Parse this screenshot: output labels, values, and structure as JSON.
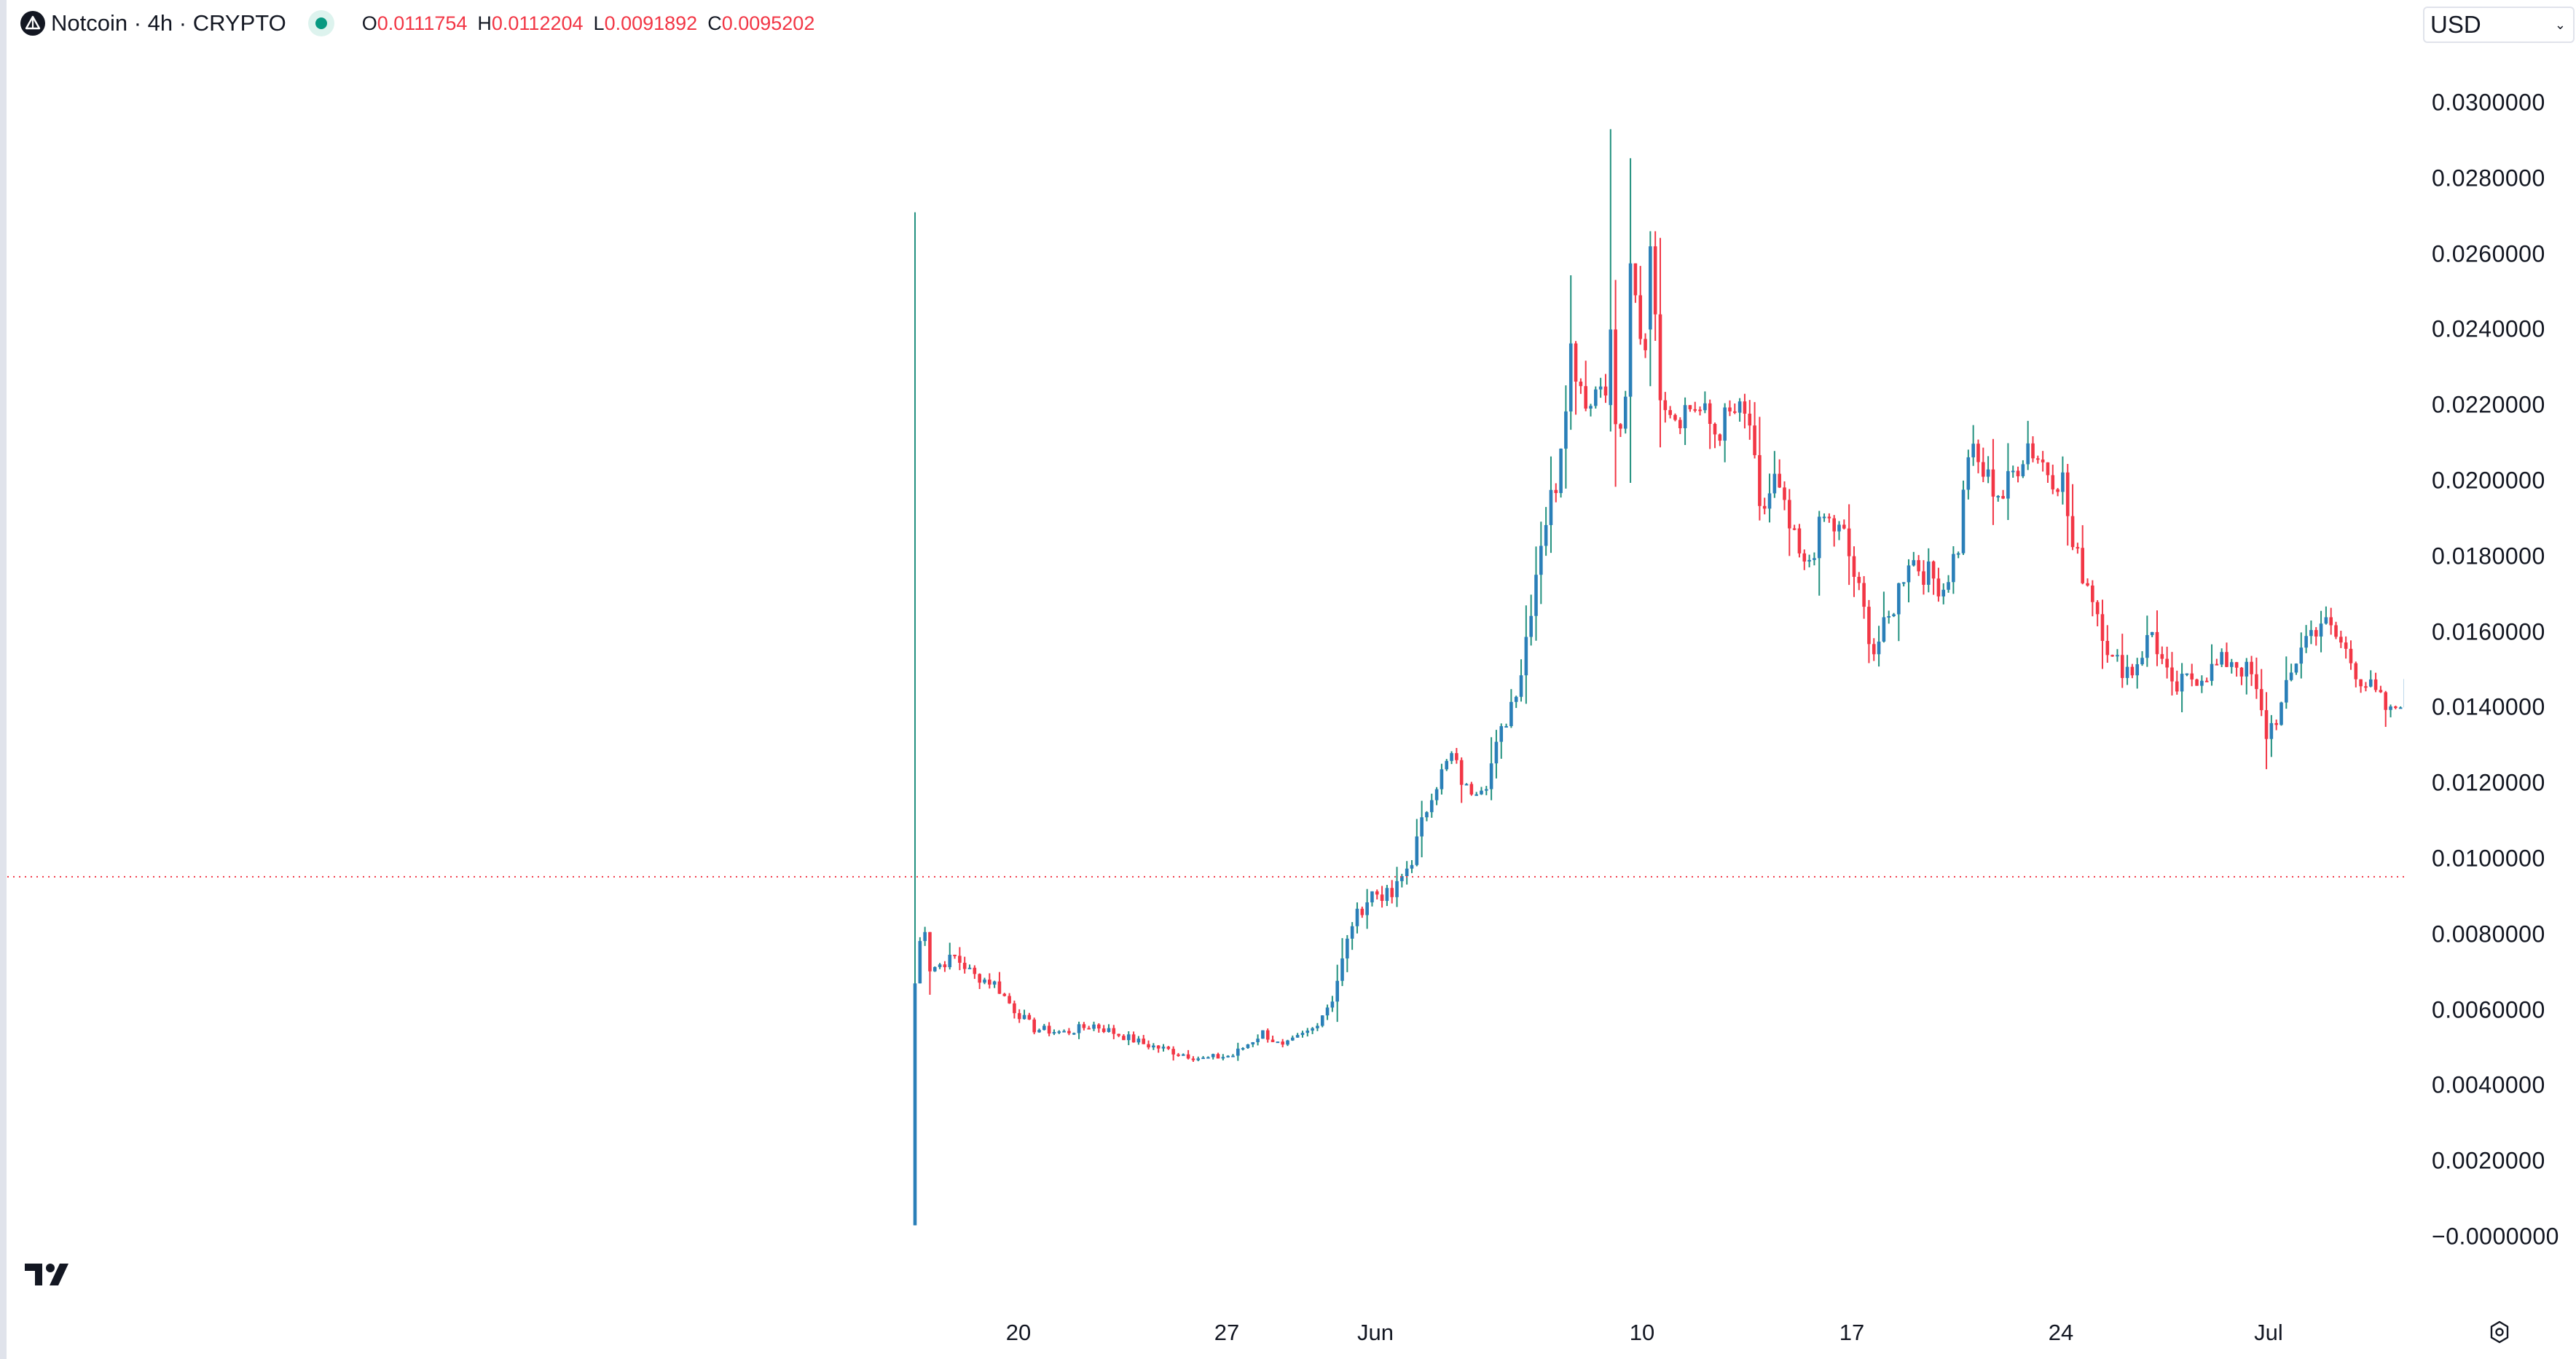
{
  "legend": {
    "title": "Notcoin · 4h · CRYPTO",
    "ohlc": [
      {
        "key": "O",
        "value": "0.0111754"
      },
      {
        "key": "H",
        "value": "0.0112204"
      },
      {
        "key": "L",
        "value": "0.0091892"
      },
      {
        "key": "C",
        "value": "0.0095202"
      }
    ]
  },
  "currency_select": {
    "value": "USD"
  },
  "colors": {
    "up_body": "#2a7fb8",
    "up_wick": "#22917f",
    "down": "#f23645",
    "last_price_line": "#f23645",
    "text": "#131722",
    "axis_border": "#e0e3eb"
  },
  "chart_data": {
    "type": "candlestick",
    "title": "Notcoin · 4h · CRYPTO",
    "currency": "USD",
    "xlabel": "",
    "ylabel": "",
    "ylim": [
      -0.0008,
      0.0314
    ],
    "grid": false,
    "legend_position": "top-left",
    "y_ticks": [
      "0.0300000",
      "0.0280000",
      "0.0260000",
      "0.0240000",
      "0.0220000",
      "0.0200000",
      "0.0180000",
      "0.0160000",
      "0.0140000",
      "0.0120000",
      "0.0100000",
      "0.0080000",
      "0.0060000",
      "0.0040000",
      "0.0020000",
      "−0.0000000"
    ],
    "y_tick_values": [
      0.03,
      0.028,
      0.026,
      0.024,
      0.022,
      0.02,
      0.018,
      0.016,
      0.014,
      0.012,
      0.01,
      0.008,
      0.006,
      0.004,
      0.002,
      0.0
    ],
    "x_ticks": [
      "20",
      "27",
      "Jun",
      "10",
      "17",
      "24",
      "Jul"
    ],
    "x_tick_positions": [
      1398,
      1684,
      1888,
      2254,
      2542,
      2829,
      3114
    ],
    "last_price": 0.0095202,
    "first_candle_x": 1256,
    "candle_spacing": 6.82,
    "waypoints_close": [
      [
        0,
        0.0067
      ],
      [
        1,
        0.0078
      ],
      [
        2,
        0.0082
      ],
      [
        3,
        0.0071
      ],
      [
        5,
        0.0072
      ],
      [
        8,
        0.0074
      ],
      [
        12,
        0.0069
      ],
      [
        16,
        0.0067
      ],
      [
        20,
        0.006
      ],
      [
        24,
        0.0055
      ],
      [
        30,
        0.0054
      ],
      [
        36,
        0.0056
      ],
      [
        40,
        0.0054
      ],
      [
        46,
        0.0051
      ],
      [
        52,
        0.0049
      ],
      [
        58,
        0.0047
      ],
      [
        64,
        0.0048
      ],
      [
        70,
        0.0054
      ],
      [
        74,
        0.005
      ],
      [
        80,
        0.0055
      ],
      [
        84,
        0.0063
      ],
      [
        88,
        0.0083
      ],
      [
        92,
        0.0091
      ],
      [
        96,
        0.009
      ],
      [
        100,
        0.01
      ],
      [
        104,
        0.0118
      ],
      [
        108,
        0.0127
      ],
      [
        111,
        0.0118
      ],
      [
        115,
        0.0121
      ],
      [
        118,
        0.0133
      ],
      [
        122,
        0.015
      ],
      [
        126,
        0.0185
      ],
      [
        129,
        0.02
      ],
      [
        132,
        0.0235
      ],
      [
        134,
        0.0226
      ],
      [
        136,
        0.022
      ],
      [
        138,
        0.023
      ],
      [
        140,
        0.021
      ],
      [
        143,
        0.0218
      ],
      [
        144,
        0.0255
      ],
      [
        146,
        0.024
      ],
      [
        149,
        0.0228
      ],
      [
        153,
        0.0218
      ],
      [
        157,
        0.022
      ],
      [
        161,
        0.0213
      ],
      [
        165,
        0.0218
      ],
      [
        168,
        0.0215
      ],
      [
        170,
        0.019
      ],
      [
        173,
        0.02
      ],
      [
        176,
        0.0187
      ],
      [
        179,
        0.0176
      ],
      [
        183,
        0.019
      ],
      [
        187,
        0.0185
      ],
      [
        190,
        0.017
      ],
      [
        193,
        0.0155
      ],
      [
        196,
        0.0163
      ],
      [
        200,
        0.018
      ],
      [
        204,
        0.0175
      ],
      [
        207,
        0.0172
      ],
      [
        210,
        0.0183
      ],
      [
        212,
        0.0208
      ],
      [
        216,
        0.02
      ],
      [
        219,
        0.0196
      ],
      [
        222,
        0.0205
      ],
      [
        224,
        0.021
      ],
      [
        228,
        0.0203
      ],
      [
        231,
        0.02
      ],
      [
        233,
        0.0182
      ],
      [
        237,
        0.017
      ],
      [
        241,
        0.0152
      ],
      [
        245,
        0.015
      ],
      [
        249,
        0.016
      ],
      [
        253,
        0.0144
      ],
      [
        257,
        0.0148
      ],
      [
        261,
        0.015
      ],
      [
        265,
        0.0153
      ],
      [
        269,
        0.0148
      ],
      [
        272,
        0.0133
      ],
      [
        275,
        0.014
      ],
      [
        279,
        0.0157
      ],
      [
        283,
        0.0163
      ],
      [
        287,
        0.0157
      ],
      [
        291,
        0.0148
      ],
      [
        294,
        0.0143
      ],
      [
        297,
        0.0138
      ],
      [
        300,
        0.0145
      ],
      [
        302,
        0.0148
      ],
      [
        305,
        0.0142
      ],
      [
        309,
        0.0136
      ],
      [
        312,
        0.0128
      ],
      [
        315,
        0.0125
      ],
      [
        318,
        0.012
      ],
      [
        320,
        0.0118
      ],
      [
        321,
        0.0112
      ]
    ],
    "special_candles": [
      {
        "index": 0,
        "open": 0.0003,
        "high": 0.0271,
        "low": 0.0003,
        "close": 0.0067
      },
      {
        "index": 140,
        "open": 0.022,
        "high": 0.0293,
        "low": 0.0213,
        "close": 0.024
      },
      {
        "index": 148,
        "open": 0.024,
        "high": 0.0266,
        "low": 0.0225,
        "close": 0.0262
      },
      {
        "index": 149,
        "open": 0.0262,
        "high": 0.0266,
        "low": 0.0237,
        "close": 0.0244
      },
      {
        "index": 322,
        "open": 0.0111754,
        "high": 0.0112204,
        "low": 0.0091892,
        "close": 0.0095202
      }
    ]
  },
  "icons": {
    "symbol_logo": "notcoin-triangle-icon",
    "status": "market-status-dot-icon",
    "brand": "tradingview-logo-icon",
    "settings": "gear-icon"
  }
}
